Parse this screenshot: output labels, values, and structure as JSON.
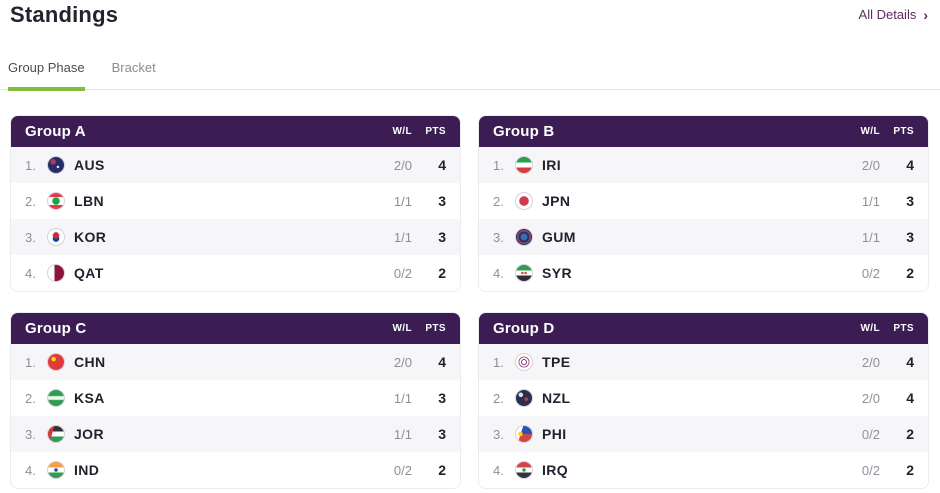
{
  "page": {
    "title": "Standings",
    "all_details_label": "All Details",
    "chevron": "›"
  },
  "tabs": [
    {
      "label": "Group Phase",
      "active": true
    },
    {
      "label": "Bracket",
      "active": false
    }
  ],
  "table_columns": {
    "wl": "W/L",
    "pts": "PTS"
  },
  "colors": {
    "header_purple": "#3b1d54",
    "accent_green": "#84bd3c",
    "link_purple": "#5f2c63",
    "row_alt_gray": "#f6f6f8",
    "text_dark": "#23212e",
    "text_gray": "#8f8f9a"
  },
  "groups": [
    {
      "name": "Group A",
      "teams": [
        {
          "rank": "1.",
          "code": "AUS",
          "wl": "2/0",
          "pts": "4",
          "flag_css": "radial-gradient(circle at 62% 62%, rgba(255,255,255,.9) 0 1px, rgba(0,0,0,0) 1.5px), radial-gradient(circle at 32% 30%, #b43757 0 2.5px, rgba(0,0,0,0) 3px), #252e66"
        },
        {
          "rank": "2.",
          "code": "LBN",
          "wl": "1/1",
          "pts": "3",
          "flag_css": "radial-gradient(circle at 50% 50%, #1da64a 0 3.5px, rgba(0,0,0,0) 4px), linear-gradient(180deg, #e43a47 0 26%, #ffffff 26% 74%, #e43a47 74% 100%)"
        },
        {
          "rank": "3.",
          "code": "KOR",
          "wl": "1/1",
          "pts": "3",
          "flag_css": "radial-gradient(circle at 50% 40%, #cd2e3a 0 3px, rgba(0,0,0,0) 3.5px), radial-gradient(circle at 50% 60%, #0047a0 0 3px, rgba(0,0,0,0) 3.5px), #ffffff"
        },
        {
          "rank": "4.",
          "code": "QAT",
          "wl": "0/2",
          "pts": "2",
          "flag_css": "linear-gradient(90deg, #ffffff 0 40%, #8a1538 40% 100%)"
        }
      ]
    },
    {
      "name": "Group B",
      "teams": [
        {
          "rank": "1.",
          "code": "IRI",
          "wl": "2/0",
          "pts": "4",
          "flag_css": "linear-gradient(180deg, #2a9e51 0 33%, #ffffff 33% 67%, #d93a3a 67% 100%)"
        },
        {
          "rank": "2.",
          "code": "JPN",
          "wl": "1/1",
          "pts": "3",
          "flag_css": "radial-gradient(circle at 50% 50%, #d03a4b 0 4.5px, rgba(0,0,0,0) 5px), #ffffff"
        },
        {
          "rank": "3.",
          "code": "GUM",
          "wl": "1/1",
          "pts": "3",
          "flag_css": "radial-gradient(circle at 50% 50%, #3b6fb5 0 3px, rgba(0,0,0,0) 3.5px), radial-gradient(circle at 50% 50%, rgba(0,0,0,0) 0 5.5px, #b03a4f 5.5px 7px, rgba(0,0,0,0) 7px), #1d3a6e"
        },
        {
          "rank": "4.",
          "code": "SYR",
          "wl": "0/2",
          "pts": "2",
          "flag_css": "radial-gradient(circle at 40% 50%, #d04545 0 1px, rgba(0,0,0,0) 1.5px), radial-gradient(circle at 60% 50%, #d04545 0 1px, rgba(0,0,0,0) 1.5px), linear-gradient(180deg, #2e9e50 0 33%, #ffffff 33% 67%, #2f2f33 67% 100%)"
        }
      ]
    },
    {
      "name": "Group C",
      "teams": [
        {
          "rank": "1.",
          "code": "CHN",
          "wl": "2/0",
          "pts": "4",
          "flag_css": "radial-gradient(circle at 35% 32%, #ffde00 0 2px, rgba(0,0,0,0) 2.5px), #e13a3a"
        },
        {
          "rank": "2.",
          "code": "KSA",
          "wl": "1/1",
          "pts": "3",
          "flag_css": "linear-gradient(0deg, rgba(0,0,0,0) 0 35%, rgba(255,255,255,.92) 42% 58%, rgba(0,0,0,0) 65%), #2f9e4f"
        },
        {
          "rank": "3.",
          "code": "JOR",
          "wl": "1/1",
          "pts": "3",
          "flag_css": "linear-gradient(105deg, #ce3a3a 0 30%, rgba(0,0,0,0) 30.5%), linear-gradient(180deg, #33333a 0 33%, #ffffff 33% 67%, #2e9e50 67% 100%)"
        },
        {
          "rank": "4.",
          "code": "IND",
          "wl": "0/2",
          "pts": "2",
          "flag_css": "radial-gradient(circle at 50% 50%, #2a4b9b 0 1.5px, rgba(0,0,0,0) 2px), linear-gradient(180deg, #f5a04b 0 33%, #ffffff 33% 67%, #2e9e50 67% 100%)"
        }
      ]
    },
    {
      "name": "Group D",
      "teams": [
        {
          "rank": "1.",
          "code": "TPE",
          "wl": "2/0",
          "pts": "4",
          "flag_css": "radial-gradient(circle at 50% 50%, #ffffff 0 2px, #7a4a8a 2px 3px, #ffffff 3px 4.5px, #a85a78 4.5px 5.5px, #ffffff 5.5px), #ffffff"
        },
        {
          "rank": "2.",
          "code": "NZL",
          "wl": "2/0",
          "pts": "4",
          "flag_css": "radial-gradient(circle at 64% 58%, #cc3a4a 0 1.5px, rgba(0,0,0,0) 2px), radial-gradient(circle at 30% 30%, rgba(255,255,255,.85) 0 2px, rgba(0,0,0,0) 2.5px), #28304f"
        },
        {
          "rank": "3.",
          "code": "PHI",
          "wl": "0/2",
          "pts": "2",
          "flag_css": "radial-gradient(circle at 28% 50%, #fcd116 0 2px, rgba(0,0,0,0) 2.5px), linear-gradient(108deg, #ffffff 0 34%, rgba(0,0,0,0) 34.5%), linear-gradient(180deg, #2a52b5 0 50%, #d04545 50% 100%)"
        },
        {
          "rank": "4.",
          "code": "IRQ",
          "wl": "0/2",
          "pts": "2",
          "flag_css": "radial-gradient(circle at 50% 50%, #2e9e50 0 1.5px, rgba(0,0,0,0) 2px), linear-gradient(180deg, #d04545 0 33%, #ffffff 33% 67%, #33333a 67% 100%)"
        }
      ]
    }
  ]
}
